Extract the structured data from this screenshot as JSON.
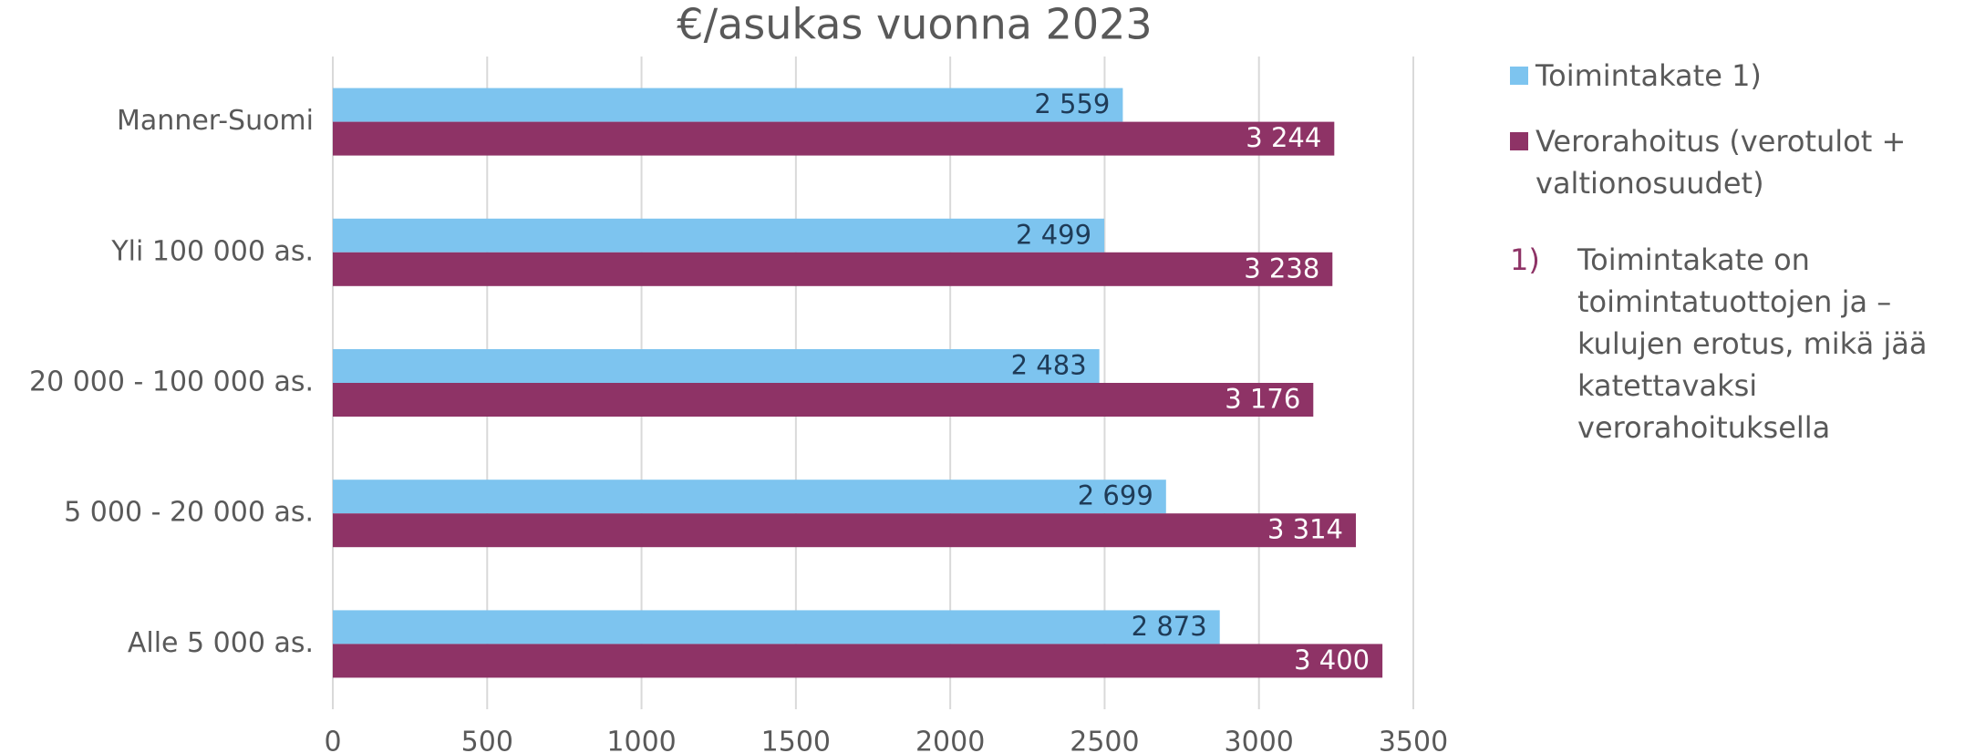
{
  "chart_data": {
    "type": "hbar",
    "title": "€/asukas vuonna 2023",
    "categories": [
      "Manner-Suomi",
      "Yli 100 000 as.",
      "20 000 - 100 000 as.",
      "5 000 - 20 000 as.",
      "Alle 5 000 as."
    ],
    "series": [
      {
        "name": "Toimintakate 1)",
        "color": "#7dc4ef",
        "values": [
          2559,
          2499,
          2483,
          2699,
          2873
        ],
        "value_labels": [
          "2 559",
          "2 499",
          "2 483",
          "2 699",
          "2 873"
        ]
      },
      {
        "name": "Verorahoitus (verotulot + valtionosuudet)",
        "color": "#8e3366",
        "values": [
          3244,
          3238,
          3176,
          3314,
          3400
        ],
        "value_labels": [
          "3 244",
          "3 238",
          "3 176",
          "3 314",
          "3 400"
        ]
      }
    ],
    "xlim": [
      0,
      3500
    ],
    "xticks": [
      0,
      500,
      1000,
      1500,
      2000,
      2500,
      3000,
      3500
    ],
    "grid": true,
    "legend": "right",
    "note": {
      "marker": "1)",
      "text": "Toimintakate on toimintatuottojen ja –kulujen erotus, mikä jää katettavaksi verorahoituksella"
    }
  }
}
